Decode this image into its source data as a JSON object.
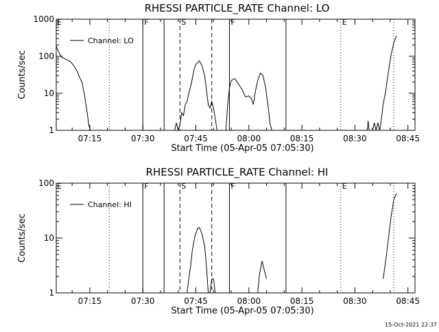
{
  "footer": {
    "timestamp": "15-Oct-2021 22:37"
  },
  "chart_data": [
    {
      "type": "line",
      "title": "RHESSI PARTICLE_RATE Channel: LO",
      "xlabel": "Start Time (05-Apr-05 07:05:30)",
      "ylabel": "Counts/sec",
      "y_scale": "log",
      "ylim": [
        1,
        1000
      ],
      "xlim": [
        "07:05:30",
        "08:47:00"
      ],
      "x_ticks": [
        "07:15",
        "07:30",
        "07:45",
        "08:00",
        "08:15",
        "08:30",
        "08:45"
      ],
      "y_ticks": [
        "1",
        "10",
        "100",
        "1000"
      ],
      "grid": false,
      "legend": {
        "position": "top-left",
        "entries": [
          "Channel: LO"
        ]
      },
      "markers": [
        {
          "time": "07:20:30",
          "style": "dotted",
          "label": ""
        },
        {
          "time": "07:30:00",
          "style": "solid",
          "label": "F"
        },
        {
          "time": "07:36:00",
          "style": "solid",
          "label": ""
        },
        {
          "time": "07:40:30",
          "style": "dashed",
          "label": "S"
        },
        {
          "time": "07:49:30",
          "style": "dashed",
          "label": ""
        },
        {
          "time": "07:54:30",
          "style": "solid",
          "label": "F"
        },
        {
          "time": "08:10:30",
          "style": "solid",
          "label": ""
        },
        {
          "time": "08:26:00",
          "style": "dotted",
          "label": "E"
        },
        {
          "time": "08:41:00",
          "style": "dotted",
          "label": ""
        }
      ],
      "edge_labels": {
        "left": "E"
      },
      "series": [
        {
          "name": "Channel: LO",
          "segments": [
            [
              [
                "07:05:30",
                190
              ],
              [
                "07:06:00",
                140
              ],
              [
                "07:07:00",
                95
              ],
              [
                "07:08:30",
                80
              ],
              [
                "07:09:30",
                72
              ],
              [
                "07:10:30",
                55
              ],
              [
                "07:11:30",
                38
              ],
              [
                "07:12:00",
                28
              ],
              [
                "07:12:45",
                20
              ],
              [
                "07:13:30",
                9
              ],
              [
                "07:14:15",
                3
              ],
              [
                "07:14:45",
                1.3
              ],
              [
                "07:15:10",
                1
              ]
            ],
            [
              [
                "07:39:00",
                1
              ],
              [
                "07:39:30",
                1.6
              ],
              [
                "07:40:00",
                1
              ],
              [
                "07:40:30",
                1.4
              ],
              [
                "07:41:00",
                3
              ],
              [
                "07:41:30",
                2.5
              ],
              [
                "07:42:00",
                5
              ],
              [
                "07:42:30",
                6
              ],
              [
                "07:43:00",
                10
              ],
              [
                "07:43:30",
                15
              ],
              [
                "07:44:00",
                25
              ],
              [
                "07:44:30",
                45
              ],
              [
                "07:45:00",
                60
              ],
              [
                "07:46:00",
                75
              ],
              [
                "07:46:45",
                55
              ],
              [
                "07:47:30",
                30
              ],
              [
                "07:48:00",
                12
              ],
              [
                "07:48:30",
                5
              ],
              [
                "07:49:00",
                4
              ],
              [
                "07:49:30",
                6
              ],
              [
                "07:50:00",
                4
              ],
              [
                "07:50:30",
                2
              ],
              [
                "07:51:00",
                1
              ]
            ],
            [
              [
                "07:53:30",
                1
              ],
              [
                "07:54:00",
                5
              ],
              [
                "07:54:30",
                14
              ],
              [
                "07:55:00",
                22
              ],
              [
                "07:56:00",
                25
              ],
              [
                "07:57:00",
                18
              ],
              [
                "07:58:00",
                13
              ],
              [
                "07:59:00",
                8
              ],
              [
                "08:00:00",
                8.5
              ],
              [
                "08:00:45",
                7
              ],
              [
                "08:01:15",
                5
              ],
              [
                "08:01:45",
                10
              ],
              [
                "08:02:30",
                22
              ],
              [
                "08:03:15",
                35
              ],
              [
                "08:04:00",
                30
              ],
              [
                "08:04:45",
                14
              ],
              [
                "08:05:30",
                4
              ],
              [
                "08:06:00",
                1.5
              ],
              [
                "08:06:30",
                1
              ]
            ],
            [
              [
                "08:33:30",
                1
              ],
              [
                "08:33:45",
                1.8
              ],
              [
                "08:34:00",
                1
              ]
            ],
            [
              [
                "08:35:00",
                1
              ],
              [
                "08:35:30",
                1.6
              ],
              [
                "08:36:00",
                1
              ],
              [
                "08:36:30",
                1.6
              ],
              [
                "08:37:00",
                1
              ],
              [
                "08:37:30",
                2
              ],
              [
                "08:38:00",
                5
              ],
              [
                "08:38:45",
                12
              ],
              [
                "08:39:30",
                40
              ],
              [
                "08:40:15",
                110
              ],
              [
                "08:41:00",
                230
              ],
              [
                "08:41:45",
                360
              ]
            ]
          ]
        }
      ]
    },
    {
      "type": "line",
      "title": "RHESSI PARTICLE_RATE Channel: HI",
      "xlabel": "Start Time (05-Apr-05 07:05:30)",
      "ylabel": "Counts/sec",
      "y_scale": "log",
      "ylim": [
        1,
        100
      ],
      "xlim": [
        "07:05:30",
        "08:47:00"
      ],
      "x_ticks": [
        "07:15",
        "07:30",
        "07:45",
        "08:00",
        "08:15",
        "08:30",
        "08:45"
      ],
      "y_ticks": [
        "1",
        "10",
        "100"
      ],
      "grid": false,
      "legend": {
        "position": "top-left",
        "entries": [
          "Channel: HI"
        ]
      },
      "markers": [
        {
          "time": "07:20:30",
          "style": "dotted",
          "label": ""
        },
        {
          "time": "07:30:00",
          "style": "solid",
          "label": "F"
        },
        {
          "time": "07:36:00",
          "style": "solid",
          "label": ""
        },
        {
          "time": "07:40:30",
          "style": "dashed",
          "label": "S"
        },
        {
          "time": "07:49:30",
          "style": "dashed",
          "label": ""
        },
        {
          "time": "07:54:30",
          "style": "solid",
          "label": "F"
        },
        {
          "time": "08:10:30",
          "style": "solid",
          "label": ""
        },
        {
          "time": "08:26:00",
          "style": "dotted",
          "label": "E"
        },
        {
          "time": "08:41:00",
          "style": "dotted",
          "label": ""
        }
      ],
      "edge_labels": {
        "left": "E"
      },
      "series": [
        {
          "name": "Channel: HI",
          "segments": [
            [
              [
                "07:42:30",
                1
              ],
              [
                "07:43:00",
                1.8
              ],
              [
                "07:43:30",
                3
              ],
              [
                "07:44:00",
                6
              ],
              [
                "07:44:45",
                11
              ],
              [
                "07:45:30",
                15
              ],
              [
                "07:46:00",
                15.5
              ],
              [
                "07:46:45",
                12
              ],
              [
                "07:47:30",
                7
              ],
              [
                "07:48:00",
                3
              ],
              [
                "07:48:30",
                1
              ]
            ],
            [
              [
                "07:49:00",
                1
              ],
              [
                "07:49:30",
                1.8
              ],
              [
                "07:50:00",
                1.8
              ],
              [
                "07:50:30",
                1
              ]
            ],
            [
              [
                "08:02:30",
                1
              ],
              [
                "08:03:00",
                2.2
              ],
              [
                "08:03:45",
                3.8
              ],
              [
                "08:04:30",
                2.4
              ],
              [
                "08:05:00",
                1.8
              ]
            ],
            [
              [
                "08:38:00",
                1.8
              ],
              [
                "08:38:45",
                4
              ],
              [
                "08:39:30",
                10
              ],
              [
                "08:40:15",
                25
              ],
              [
                "08:41:00",
                50
              ],
              [
                "08:41:45",
                65
              ]
            ]
          ]
        }
      ]
    }
  ]
}
